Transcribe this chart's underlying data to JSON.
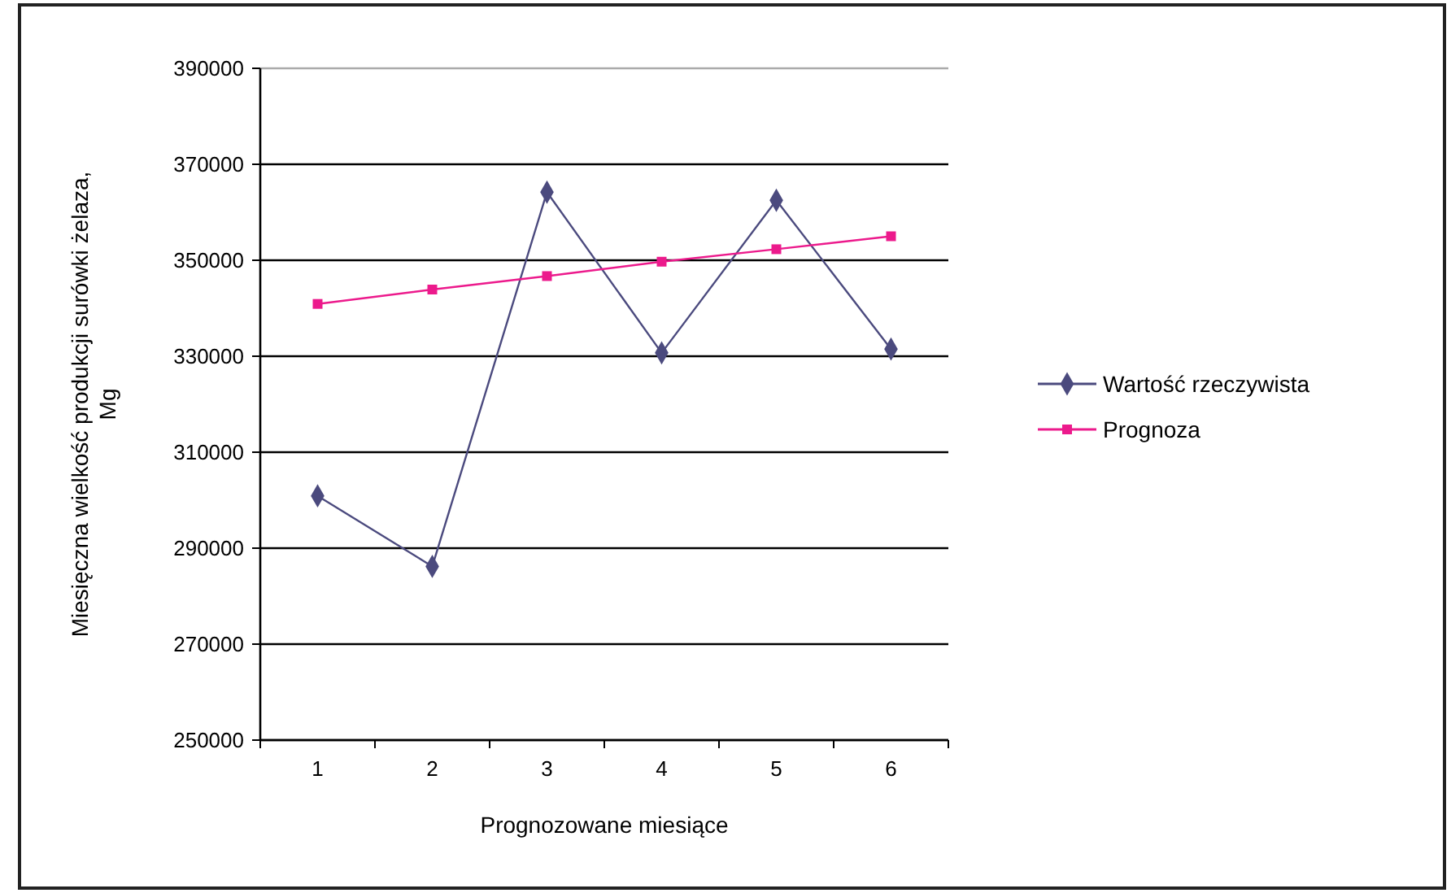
{
  "chart_data": {
    "type": "line",
    "xlabel": "Prognozowane miesiące",
    "ylabel": "Miesięczna wielkość produkcji surówki żelaza,\nMg",
    "categories": [
      "1",
      "2",
      "3",
      "4",
      "5",
      "6"
    ],
    "series": [
      {
        "name": "Wartość rzeczywista",
        "color": "#4b4a7e",
        "marker": "diamond",
        "values": [
          300900,
          286200,
          364200,
          330700,
          362500,
          331500
        ]
      },
      {
        "name": "Prognoza",
        "color": "#ec1a8c",
        "marker": "square",
        "values": [
          340900,
          343900,
          346700,
          349700,
          352300,
          355000
        ]
      }
    ],
    "ylim": [
      250000,
      390000
    ],
    "yticks": [
      250000,
      270000,
      290000,
      310000,
      330000,
      350000,
      370000,
      390000
    ],
    "grid": "y",
    "legend": "right",
    "line_style": "solid"
  }
}
